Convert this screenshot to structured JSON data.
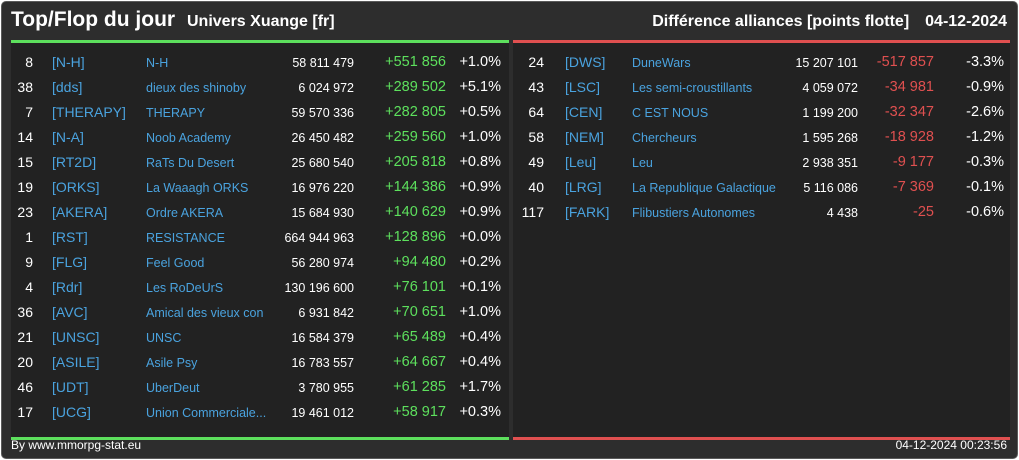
{
  "header": {
    "title": "Top/Flop du jour",
    "universe": "Univers Xuange [fr]",
    "category": "Différence alliances [points flotte]",
    "date": "04-12-2024"
  },
  "top": [
    {
      "rank": "8",
      "tag": "[N-H]",
      "name": "N-H",
      "points": "58 811 479",
      "diff": "+551 856",
      "pct": "+1.0%"
    },
    {
      "rank": "38",
      "tag": "[dds]",
      "name": "dieux des shinoby",
      "points": "6 024 972",
      "diff": "+289 502",
      "pct": "+5.1%"
    },
    {
      "rank": "7",
      "tag": "[THERAPY]",
      "name": "THERAPY",
      "points": "59 570 336",
      "diff": "+282 805",
      "pct": "+0.5%"
    },
    {
      "rank": "14",
      "tag": "[N-A]",
      "name": "Noob Academy",
      "points": "26 450 482",
      "diff": "+259 560",
      "pct": "+1.0%"
    },
    {
      "rank": "15",
      "tag": "[RT2D]",
      "name": "RaTs Du Desert",
      "points": "25 680 540",
      "diff": "+205 818",
      "pct": "+0.8%"
    },
    {
      "rank": "19",
      "tag": "[ORKS]",
      "name": "La Waaagh ORKS",
      "points": "16 976 220",
      "diff": "+144 386",
      "pct": "+0.9%"
    },
    {
      "rank": "23",
      "tag": "[AKERA]",
      "name": "Ordre AKERA",
      "points": "15 684 930",
      "diff": "+140 629",
      "pct": "+0.9%"
    },
    {
      "rank": "1",
      "tag": "[RST]",
      "name": "RESISTANCE",
      "points": "664 944 963",
      "diff": "+128 896",
      "pct": "+0.0%"
    },
    {
      "rank": "9",
      "tag": "[FLG]",
      "name": "Feel Good",
      "points": "56 280 974",
      "diff": "+94 480",
      "pct": "+0.2%"
    },
    {
      "rank": "4",
      "tag": "[Rdr]",
      "name": "Les RoDeUrS",
      "points": "130 196 600",
      "diff": "+76 101",
      "pct": "+0.1%"
    },
    {
      "rank": "36",
      "tag": "[AVC]",
      "name": "Amical des vieux con",
      "points": "6 931 842",
      "diff": "+70 651",
      "pct": "+1.0%"
    },
    {
      "rank": "21",
      "tag": "[UNSC]",
      "name": "UNSC",
      "points": "16 584 379",
      "diff": "+65 489",
      "pct": "+0.4%"
    },
    {
      "rank": "20",
      "tag": "[ASILE]",
      "name": "Asile Psy",
      "points": "16 783 557",
      "diff": "+64 667",
      "pct": "+0.4%"
    },
    {
      "rank": "46",
      "tag": "[UDT]",
      "name": "UberDeut",
      "points": "3 780 955",
      "diff": "+61 285",
      "pct": "+1.7%"
    },
    {
      "rank": "17",
      "tag": "[UCG]",
      "name": "Union Commerciale...",
      "points": "19 461 012",
      "diff": "+58 917",
      "pct": "+0.3%"
    }
  ],
  "flop": [
    {
      "rank": "24",
      "tag": "[DWS]",
      "name": "DuneWars",
      "points": "15 207 101",
      "diff": "-517 857",
      "pct": "-3.3%"
    },
    {
      "rank": "43",
      "tag": "[LSC]",
      "name": "Les semi-croustillants",
      "points": "4 059 072",
      "diff": "-34 981",
      "pct": "-0.9%"
    },
    {
      "rank": "64",
      "tag": "[CEN]",
      "name": "C EST NOUS",
      "points": "1 199 200",
      "diff": "-32 347",
      "pct": "-2.6%"
    },
    {
      "rank": "58",
      "tag": "[NEM]",
      "name": "Chercheurs",
      "points": "1 595 268",
      "diff": "-18 928",
      "pct": "-1.2%"
    },
    {
      "rank": "49",
      "tag": "[Leu]",
      "name": "Leu",
      "points": "2 938 351",
      "diff": "-9 177",
      "pct": "-0.3%"
    },
    {
      "rank": "40",
      "tag": "[LRG]",
      "name": "La Republique Galactique",
      "points": "5 116 086",
      "diff": "-7 369",
      "pct": "-0.1%"
    },
    {
      "rank": "117",
      "tag": "[FARK]",
      "name": "Flibustiers Autonomes",
      "points": "4 438",
      "diff": "-25",
      "pct": "-0.6%"
    }
  ],
  "footer": {
    "credit": "By www.mmorpg-stat.eu",
    "timestamp": "04-12-2024 00:23:56"
  },
  "colors": {
    "positive": "#5de05d",
    "negative": "#e05050",
    "link": "#4aa3df",
    "background": "#2d2d2d"
  }
}
